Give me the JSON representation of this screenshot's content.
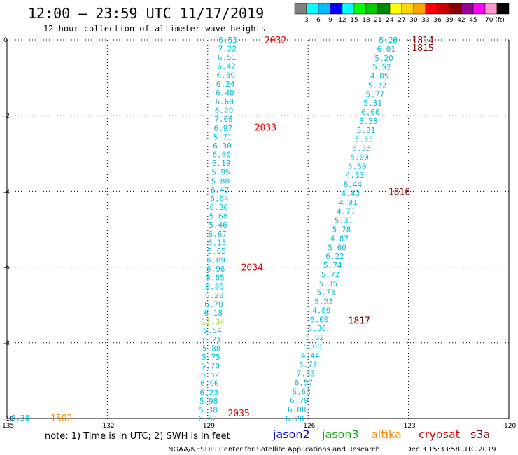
{
  "header": {
    "title": "12:00 – 23:59 UTC 11/17/2019",
    "subtitle": "12 hour collection of altimeter wave heights"
  },
  "colorbar": {
    "colors": [
      "#7f7f7f",
      "#00ffff",
      "#00bfff",
      "#0000ff",
      "#00ffff",
      "#00ff00",
      "#00cc00",
      "#008800",
      "#ffff00",
      "#ffd700",
      "#ffa500",
      "#ff0000",
      "#cc0000",
      "#880000",
      "#990099",
      "#ff00ff",
      "#ff99cc",
      "#000000"
    ],
    "labels": [
      "3",
      "6",
      "9",
      "12",
      "15",
      "18",
      "21",
      "24",
      "27",
      "30",
      "33",
      "36",
      "39",
      "42",
      "45",
      "70 (ft)"
    ]
  },
  "footer": {
    "note": "note:  1) Time is in UTC;  2) SWH is in feet",
    "credit": "NOAA/NESDIS Center for Satellite Applications and Research",
    "timestamp": "Dec  3 15:33:58 UTC 2019",
    "legend": [
      {
        "name": "jason2",
        "color": "#0000dd"
      },
      {
        "name": "jason3",
        "color": "#00aa00"
      },
      {
        "name": "altika",
        "color": "#ff8800"
      },
      {
        "name": "cryosat",
        "color": "#dd0000"
      },
      {
        "name": "s3a",
        "color": "#880000"
      }
    ]
  },
  "chart_data": {
    "type": "scatter",
    "xlim": [
      -135,
      -120
    ],
    "ylim": [
      -10,
      0
    ],
    "xticks": [
      -135,
      -132,
      -129,
      -126,
      -123,
      -120
    ],
    "xtick_labels": [
      "-135",
      "-132",
      "-129",
      "-126",
      "-123",
      "-120"
    ],
    "yticks": [
      0,
      -2,
      -4,
      -6,
      -8,
      -10
    ],
    "ytick_labels": [
      "0",
      "-2",
      "-4",
      "-6",
      "-8",
      "-10"
    ],
    "grid": true,
    "track_a": {
      "x_start": -128.4,
      "x_end": -129.0,
      "y_start": 0.0,
      "y_end": -10.0,
      "values": [
        "6.53",
        "7.22",
        "6.51",
        "6.42",
        "6.39",
        "6.24",
        "6.48",
        "6.60",
        "6.29",
        "7.08",
        "6.97",
        "5.71",
        "6.30",
        "6.00",
        "6.19",
        "5.95",
        "5.88",
        "6.47",
        "6.64",
        "6.30",
        "5.68",
        "5.46",
        "6.67",
        "6.15",
        "5.85",
        "6.09",
        "6.96",
        "5.85",
        "6.85",
        "6.20",
        "6.70",
        "6.18",
        "12.34",
        "6.54",
        "6.21",
        "5.88",
        "5.75",
        "5.70",
        "6.52",
        "6.90",
        "6.23",
        "5.98",
        "5.38",
        "6.62"
      ],
      "color": "#00bbdd",
      "highlight_index": 32,
      "highlight_color": "#88dd22"
    },
    "track_b": {
      "x_start": -123.6,
      "x_end": -126.4,
      "y_start": 0.0,
      "y_end": -10.0,
      "values": [
        "5.28",
        "6.01",
        "5.20",
        "5.52",
        "4.85",
        "5.32",
        "5.77",
        "5.31",
        "6.00",
        "5.53",
        "5.81",
        "5.53",
        "6.36",
        "5.00",
        "5.50",
        "4.33",
        "6.44",
        "4.43",
        "4.91",
        "4.71",
        "5.31",
        "5.78",
        "4.87",
        "5.60",
        "6.22",
        "5.74",
        "5.72",
        "5.35",
        "5.73",
        "5.23",
        "4.89",
        "6.00",
        "5.36",
        "5.82",
        "5.00",
        "4.44",
        "5.73",
        "7.33",
        "6.57",
        "6.63",
        "6.79",
        "6.08",
        "6.28"
      ],
      "color": "#00bbdd"
    },
    "lone_point": {
      "x": -134.6,
      "y": -9.98,
      "value": "6.38",
      "color": "#00bbdd"
    },
    "time_labels": [
      {
        "x": -127.3,
        "y": 0.0,
        "text": "2032",
        "color": "#dd0000"
      },
      {
        "x": -127.6,
        "y": -2.3,
        "text": "2033",
        "color": "#dd0000"
      },
      {
        "x": -128.0,
        "y": -6.0,
        "text": "2034",
        "color": "#dd0000"
      },
      {
        "x": -128.4,
        "y": -9.85,
        "text": "2035",
        "color": "#dd0000"
      },
      {
        "x": -122.9,
        "y": 0.0,
        "text": "1814",
        "color": "#880000"
      },
      {
        "x": -122.9,
        "y": -0.2,
        "text": "1815",
        "color": "#880000"
      },
      {
        "x": -123.6,
        "y": -4.0,
        "text": "1816",
        "color": "#880000"
      },
      {
        "x": -124.8,
        "y": -7.4,
        "text": "1817",
        "color": "#880000"
      },
      {
        "x": -133.7,
        "y": -9.98,
        "text": "1502",
        "color": "#ff8800"
      }
    ]
  }
}
